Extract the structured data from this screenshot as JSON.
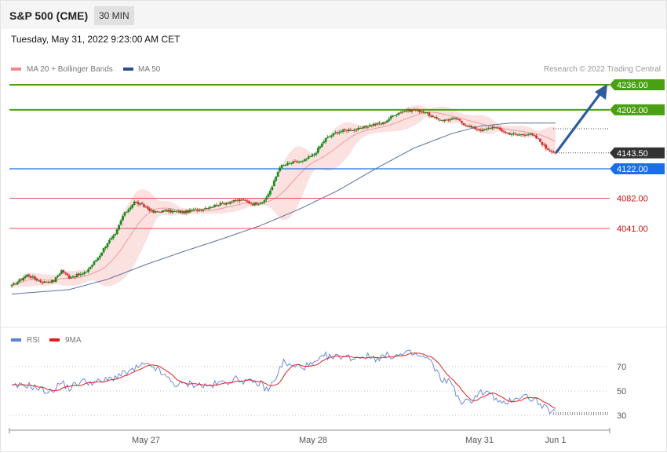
{
  "header": {
    "title": "S&P 500 (CME)",
    "timeframe": "30 MIN",
    "datetime": "Tuesday, May 31, 2022 9:23:00 AM CET"
  },
  "legend": {
    "ma20_bollinger": "MA 20 + Bollinger Bands",
    "ma50": "MA 50",
    "credit": "Research © 2022 Trading Central"
  },
  "rsi_legend": {
    "rsi": "RSI",
    "ma9": "9MA"
  },
  "colors": {
    "bull": "#1f8a1f",
    "bear": "#d32f2f",
    "band": "#fcdcdc",
    "ma20": "#f08a8a",
    "ma50": "#5b6f9c",
    "resistance": "#4aa013",
    "support_blue": "#1a6fe8",
    "support_red": "#e05050",
    "arrow": "#2e5c9e",
    "rsi": "#5b7fdd",
    "rsi_ma": "#e02020"
  },
  "chart_data": {
    "type": "candlestick",
    "interval": "30 MIN",
    "y_range": [
      3935,
      4255
    ],
    "x_labels": [
      "May 27",
      "May 28",
      "May 31",
      "Jun 1"
    ],
    "last_price": 4143.5,
    "levels": [
      {
        "value": 4236.0,
        "label": "4236.00",
        "kind": "resistance"
      },
      {
        "value": 4202.0,
        "label": "4202.00",
        "kind": "resistance"
      },
      {
        "value": 4143.5,
        "label": "4143.50",
        "kind": "current"
      },
      {
        "value": 4122.0,
        "label": "4122.00",
        "kind": "support"
      },
      {
        "value": 4082.0,
        "label": "4082.00",
        "kind": "support-weak"
      },
      {
        "value": 4041.0,
        "label": "4041.00",
        "kind": "support-weak"
      }
    ],
    "anchors": [
      [
        0,
        3963
      ],
      [
        8,
        3978
      ],
      [
        16,
        3968
      ],
      [
        22,
        3970
      ],
      [
        26,
        3984
      ],
      [
        30,
        3975
      ],
      [
        38,
        3980
      ],
      [
        42,
        3992
      ],
      [
        46,
        4005
      ],
      [
        50,
        4022
      ],
      [
        54,
        4032
      ],
      [
        58,
        4058
      ],
      [
        64,
        4077
      ],
      [
        70,
        4070
      ],
      [
        74,
        4063
      ],
      [
        80,
        4065
      ],
      [
        90,
        4063
      ],
      [
        100,
        4068
      ],
      [
        110,
        4075
      ],
      [
        120,
        4080
      ],
      [
        126,
        4074
      ],
      [
        132,
        4078
      ],
      [
        136,
        4098
      ],
      [
        140,
        4125
      ],
      [
        146,
        4130
      ],
      [
        152,
        4132
      ],
      [
        158,
        4142
      ],
      [
        164,
        4163
      ],
      [
        170,
        4172
      ],
      [
        176,
        4175
      ],
      [
        182,
        4176
      ],
      [
        188,
        4182
      ],
      [
        194,
        4184
      ],
      [
        200,
        4196
      ],
      [
        204,
        4200
      ],
      [
        210,
        4202
      ],
      [
        216,
        4199
      ],
      [
        220,
        4191
      ],
      [
        226,
        4188
      ],
      [
        232,
        4190
      ],
      [
        236,
        4183
      ],
      [
        240,
        4178
      ],
      [
        246,
        4174
      ],
      [
        252,
        4179
      ],
      [
        258,
        4171
      ],
      [
        264,
        4168
      ],
      [
        270,
        4170
      ],
      [
        275,
        4162
      ],
      [
        279,
        4150
      ],
      [
        284,
        4143.5
      ]
    ],
    "ma50_anchors": [
      [
        0,
        3952
      ],
      [
        30,
        3958
      ],
      [
        50,
        3972
      ],
      [
        70,
        3992
      ],
      [
        90,
        4010
      ],
      [
        110,
        4027
      ],
      [
        130,
        4045
      ],
      [
        150,
        4067
      ],
      [
        170,
        4092
      ],
      [
        190,
        4122
      ],
      [
        210,
        4150
      ],
      [
        230,
        4170
      ],
      [
        245,
        4180
      ],
      [
        260,
        4184
      ],
      [
        284,
        4184
      ]
    ],
    "rsi": {
      "y_range": [
        20,
        85
      ],
      "levels": [
        70,
        50,
        30
      ],
      "anchors": [
        [
          0,
          53
        ],
        [
          8,
          55
        ],
        [
          14,
          52
        ],
        [
          20,
          49
        ],
        [
          26,
          57
        ],
        [
          30,
          52
        ],
        [
          36,
          58
        ],
        [
          44,
          57
        ],
        [
          50,
          59
        ],
        [
          56,
          63
        ],
        [
          62,
          66
        ],
        [
          68,
          71
        ],
        [
          74,
          70
        ],
        [
          80,
          62
        ],
        [
          86,
          55
        ],
        [
          94,
          56
        ],
        [
          102,
          54
        ],
        [
          110,
          57
        ],
        [
          118,
          60
        ],
        [
          124,
          57
        ],
        [
          130,
          56
        ],
        [
          134,
          50
        ],
        [
          138,
          62
        ],
        [
          142,
          74
        ],
        [
          146,
          70
        ],
        [
          152,
          70
        ],
        [
          158,
          72
        ],
        [
          164,
          79
        ],
        [
          168,
          77
        ],
        [
          172,
          79
        ],
        [
          178,
          77
        ],
        [
          184,
          79
        ],
        [
          190,
          77
        ],
        [
          196,
          79
        ],
        [
          202,
          79
        ],
        [
          208,
          81
        ],
        [
          214,
          78
        ],
        [
          218,
          76
        ],
        [
          224,
          60
        ],
        [
          230,
          57
        ],
        [
          234,
          40
        ],
        [
          240,
          42
        ],
        [
          244,
          49
        ],
        [
          250,
          48
        ],
        [
          256,
          38
        ],
        [
          262,
          44
        ],
        [
          268,
          46
        ],
        [
          274,
          42
        ],
        [
          278,
          36
        ],
        [
          284,
          32
        ]
      ]
    }
  }
}
